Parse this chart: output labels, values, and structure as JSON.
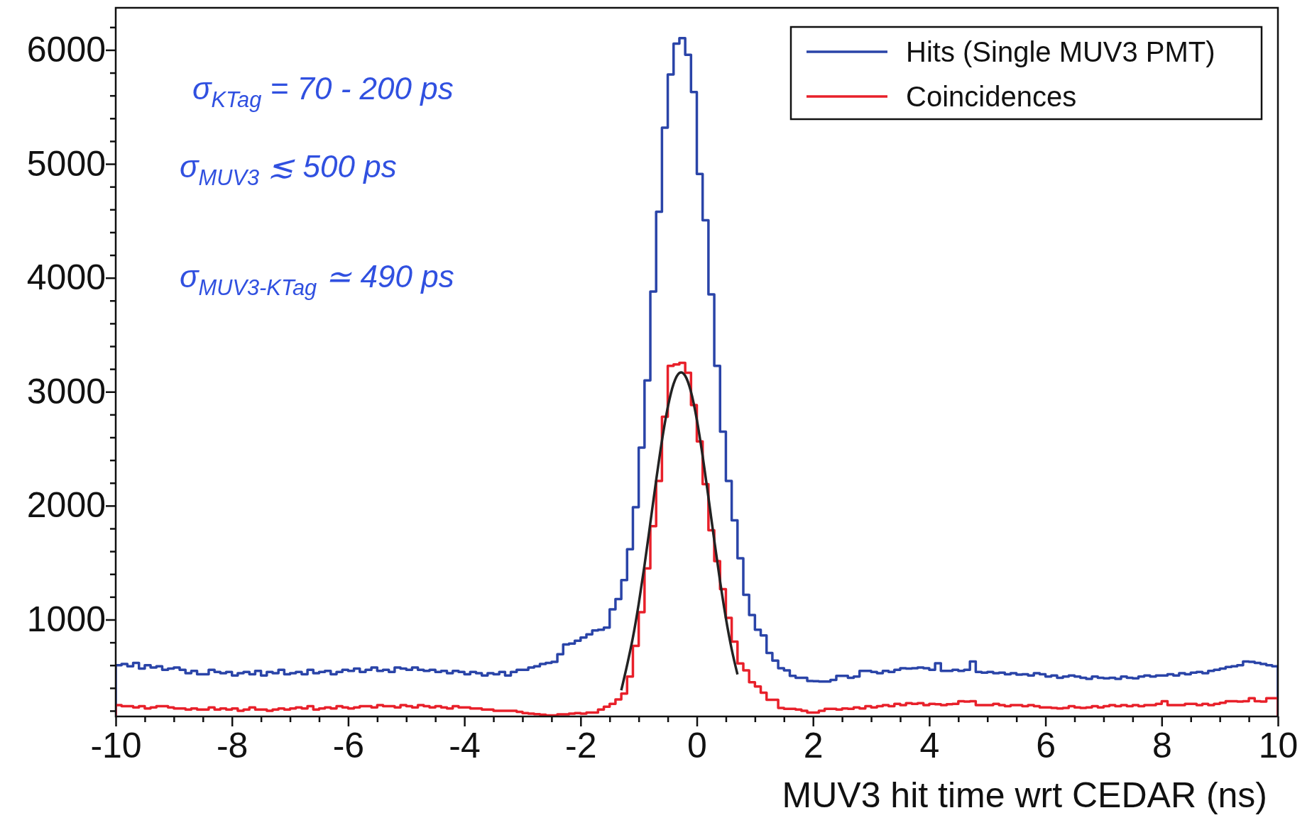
{
  "chart_data": {
    "type": "histogram",
    "xlabel": "MUV3 hit time wrt CEDAR (ns)",
    "bins": [
      -10,
      -9.9,
      -9.8,
      -9.7,
      -9.6,
      -9.5,
      -9.4,
      -9.3,
      -9.2,
      -9.1,
      -9,
      -8.9,
      -8.8,
      -8.7,
      -8.6,
      -8.5,
      -8.4,
      -8.3,
      -8.2,
      -8.1,
      -8,
      -7.9,
      -7.8,
      -7.7,
      -7.6,
      -7.5,
      -7.4,
      -7.3,
      -7.2,
      -7.1,
      -7,
      -6.9,
      -6.8,
      -6.7,
      -6.6,
      -6.5,
      -6.4,
      -6.3,
      -6.2,
      -6.1,
      -6,
      -5.9,
      -5.8,
      -5.7,
      -5.6,
      -5.5,
      -5.4,
      -5.3,
      -5.2,
      -5.1,
      -5,
      -4.9,
      -4.8,
      -4.7,
      -4.6,
      -4.5,
      -4.4,
      -4.3,
      -4.2,
      -4.1,
      -4,
      -3.9,
      -3.8,
      -3.7,
      -3.6,
      -3.5,
      -3.4,
      -3.3,
      -3.2,
      -3.1,
      -3,
      -2.9,
      -2.8,
      -2.7,
      -2.6,
      -2.5,
      -2.4,
      -2.3,
      -2.2,
      -2.1,
      -2,
      -1.9,
      -1.8,
      -1.7,
      -1.6,
      -1.5,
      -1.4,
      -1.3,
      -1.2,
      -1.1,
      -1,
      -0.9,
      -0.8,
      -0.7,
      -0.6,
      -0.5,
      -0.4,
      -0.3,
      -0.2,
      -0.1,
      0,
      0.1,
      0.2,
      0.3,
      0.4,
      0.5,
      0.6,
      0.7,
      0.8,
      0.9,
      1,
      1.1,
      1.2,
      1.3,
      1.4,
      1.5,
      1.6,
      1.7,
      1.8,
      1.9,
      2,
      2.1,
      2.2,
      2.3,
      2.4,
      2.5,
      2.6,
      2.7,
      2.8,
      2.9,
      3,
      3.1,
      3.2,
      3.3,
      3.4,
      3.5,
      3.6,
      3.7,
      3.8,
      3.9,
      4,
      4.1,
      4.2,
      4.3,
      4.4,
      4.5,
      4.6,
      4.7,
      4.8,
      4.9,
      5,
      5.1,
      5.2,
      5.3,
      5.4,
      5.5,
      5.6,
      5.7,
      5.8,
      5.9,
      6,
      6.1,
      6.2,
      6.3,
      6.4,
      6.5,
      6.6,
      6.7,
      6.8,
      6.9,
      7,
      7.1,
      7.2,
      7.3,
      7.4,
      7.5,
      7.6,
      7.7,
      7.8,
      7.9,
      8,
      8.1,
      8.2,
      8.3,
      8.4,
      8.5,
      8.6,
      8.7,
      8.8,
      8.9,
      9,
      9.1,
      9.2,
      9.3,
      9.4,
      9.5,
      9.6,
      9.7,
      9.8,
      9.9,
      10
    ],
    "xlim": [
      -10,
      10
    ],
    "ylim": [
      150,
      6370
    ],
    "xticks": [
      -10,
      {
        "value": -9.5,
        "label": null
      },
      {
        "value": -9,
        "label": null
      },
      {
        "value": -8.5,
        "label": null
      },
      -8,
      {
        "value": -7.5,
        "label": null
      },
      {
        "value": -7,
        "label": null
      },
      {
        "value": -6.5,
        "label": null
      },
      -6,
      {
        "value": -5.5,
        "label": null
      },
      {
        "value": -5,
        "label": null
      },
      {
        "value": -4.5,
        "label": null
      },
      -4,
      {
        "value": -3.5,
        "label": null
      },
      {
        "value": -3,
        "label": null
      },
      {
        "value": -2.5,
        "label": null
      },
      -2,
      {
        "value": -1.5,
        "label": null
      },
      {
        "value": -1,
        "label": null
      },
      {
        "value": -0.5,
        "label": null
      },
      0,
      {
        "value": 0.5,
        "label": null
      },
      {
        "value": 1,
        "label": null
      },
      {
        "value": 1.5,
        "label": null
      },
      2,
      {
        "value": 2.5,
        "label": null
      },
      {
        "value": 3,
        "label": null
      },
      {
        "value": 3.5,
        "label": null
      },
      4,
      {
        "value": 4.5,
        "label": null
      },
      {
        "value": 5,
        "label": null
      },
      {
        "value": 5.5,
        "label": null
      },
      6,
      {
        "value": 6.5,
        "label": null
      },
      {
        "value": 7,
        "label": null
      },
      {
        "value": 7.5,
        "label": null
      },
      8,
      {
        "value": 8.5,
        "label": null
      },
      {
        "value": 9,
        "label": null
      },
      {
        "value": 9.5,
        "label": null
      },
      10
    ],
    "yticks": [
      {
        "value": 200,
        "label": null
      },
      {
        "value": 400,
        "label": null
      },
      {
        "value": 600,
        "label": null
      },
      {
        "value": 800,
        "label": null
      },
      1000,
      {
        "value": 1200,
        "label": null
      },
      {
        "value": 1400,
        "label": null
      },
      {
        "value": 1600,
        "label": null
      },
      {
        "value": 1800,
        "label": null
      },
      2000,
      {
        "value": 2200,
        "label": null
      },
      {
        "value": 2400,
        "label": null
      },
      {
        "value": 2600,
        "label": null
      },
      {
        "value": 2800,
        "label": null
      },
      3000,
      {
        "value": 3200,
        "label": null
      },
      {
        "value": 3400,
        "label": null
      },
      {
        "value": 3600,
        "label": null
      },
      {
        "value": 3800,
        "label": null
      },
      4000,
      {
        "value": 4200,
        "label": null
      },
      {
        "value": 4400,
        "label": null
      },
      {
        "value": 4600,
        "label": null
      },
      {
        "value": 4800,
        "label": null
      },
      5000,
      {
        "value": 5200,
        "label": null
      },
      {
        "value": 5400,
        "label": null
      },
      {
        "value": 5600,
        "label": null
      },
      {
        "value": 5800,
        "label": null
      },
      6000,
      {
        "value": 6200,
        "label": null
      }
    ],
    "legend": "top right",
    "annotations": [
      "σ$_{KTag}$ = 70 - 200 ps",
      "σ$_{MUV3}$ ≲ 500 ps",
      "σ$_{MUV3-KTag}$ ≃ 490 ps"
    ],
    "series": [
      {
        "name": "Hits (Single MUV3 PMT)",
        "color": "#2a44a8",
        "values": [
          600,
          610,
          590,
          620,
          570,
          600,
          580,
          590,
          560,
          570,
          580,
          560,
          530,
          550,
          520,
          520,
          560,
          540,
          530,
          540,
          510,
          530,
          540,
          520,
          550,
          510,
          540,
          530,
          560,
          520,
          530,
          540,
          520,
          560,
          530,
          540,
          550,
          520,
          540,
          560,
          550,
          570,
          540,
          560,
          580,
          550,
          560,
          540,
          580,
          570,
          560,
          580,
          560,
          550,
          560,
          540,
          550,
          530,
          550,
          540,
          520,
          540,
          530,
          510,
          530,
          520,
          540,
          510,
          540,
          560,
          560,
          580,
          590,
          610,
          620,
          630,
          696,
          782,
          790,
          815,
          843,
          870,
          905,
          911,
          930,
          1090,
          1180,
          1347,
          1618,
          1987,
          2510,
          3100,
          3880,
          4580,
          5317,
          5785,
          6055,
          6104,
          5957,
          5631,
          4912,
          4506,
          3855,
          3228,
          2650,
          2217,
          1871,
          1538,
          1218,
          1040,
          911,
          862,
          708,
          641,
          574,
          555,
          507,
          490,
          490,
          462,
          460,
          457,
          457,
          470,
          507,
          507,
          490,
          500,
          550,
          550,
          540,
          530,
          550,
          540,
          560,
          574,
          570,
          574,
          580,
          574,
          560,
          617,
          550,
          550,
          560,
          550,
          560,
          633,
          540,
          534,
          540,
          530,
          534,
          520,
          530,
          517,
          520,
          510,
          530,
          520,
          500,
          510,
          490,
          500,
          510,
          500,
          490,
          480,
          500,
          490,
          484,
          490,
          480,
          500,
          490,
          484,
          500,
          510,
          500,
          510,
          510,
          520,
          510,
          530,
          520,
          534,
          540,
          530,
          550,
          560,
          570,
          584,
          590,
          600,
          633,
          630,
          620,
          610,
          600,
          590
        ]
      },
      {
        "name": "Coincidences",
        "color": "#e8202a",
        "values": [
          250,
          240,
          240,
          230,
          240,
          220,
          230,
          240,
          240,
          230,
          220,
          220,
          210,
          220,
          210,
          210,
          230,
          210,
          220,
          210,
          220,
          200,
          210,
          230,
          210,
          210,
          200,
          210,
          220,
          210,
          220,
          230,
          220,
          240,
          210,
          220,
          230,
          220,
          240,
          230,
          220,
          230,
          240,
          240,
          230,
          250,
          240,
          240,
          230,
          250,
          240,
          230,
          250,
          240,
          230,
          240,
          230,
          220,
          240,
          230,
          230,
          220,
          220,
          210,
          210,
          200,
          200,
          200,
          200,
          190,
          180,
          175,
          170,
          165,
          160,
          160,
          169,
          169,
          175,
          180,
          175,
          185,
          185,
          210,
          236,
          260,
          300,
          351,
          501,
          770,
          1065,
          1449,
          1820,
          2217,
          2780,
          3228,
          3240,
          3253,
          3167,
          2884,
          2564,
          2189,
          1784,
          1513,
          1268,
          1016,
          807,
          616,
          555,
          450,
          413,
          358,
          296,
          296,
          224,
          217,
          217,
          210,
          200,
          185,
          185,
          200,
          217,
          217,
          210,
          220,
          217,
          230,
          220,
          240,
          230,
          240,
          250,
          240,
          260,
          250,
          267,
          260,
          267,
          250,
          260,
          257,
          250,
          257,
          260,
          284,
          280,
          284,
          250,
          250,
          250,
          260,
          250,
          240,
          250,
          250,
          240,
          250,
          240,
          230,
          230,
          224,
          220,
          224,
          240,
          230,
          224,
          230,
          240,
          230,
          240,
          250,
          240,
          250,
          240,
          250,
          240,
          250,
          250,
          260,
          284,
          250,
          250,
          250,
          260,
          260,
          250,
          260,
          250,
          260,
          270,
          284,
          284,
          280,
          284,
          310,
          284,
          280,
          310,
          310
        ]
      },
      {
        "type": "line",
        "color": "#222222",
        "x": [
          -1.3,
          -1.2,
          -1.1,
          -1,
          -0.9,
          -0.8,
          -0.7,
          -0.6,
          -0.5,
          -0.4,
          -0.3,
          -0.27,
          -0.2,
          -0.1,
          0,
          0.1,
          0.2,
          0.3,
          0.4,
          0.5,
          0.6,
          0.7
        ],
        "values": [
          380,
          601,
          843,
          1139,
          1478,
          1848,
          2222,
          2571,
          2863,
          3069,
          3165,
          3170,
          3140,
          2999,
          2756,
          2437,
          2073,
          1697,
          1337,
          1013,
          740,
          519
        ]
      }
    ]
  }
}
